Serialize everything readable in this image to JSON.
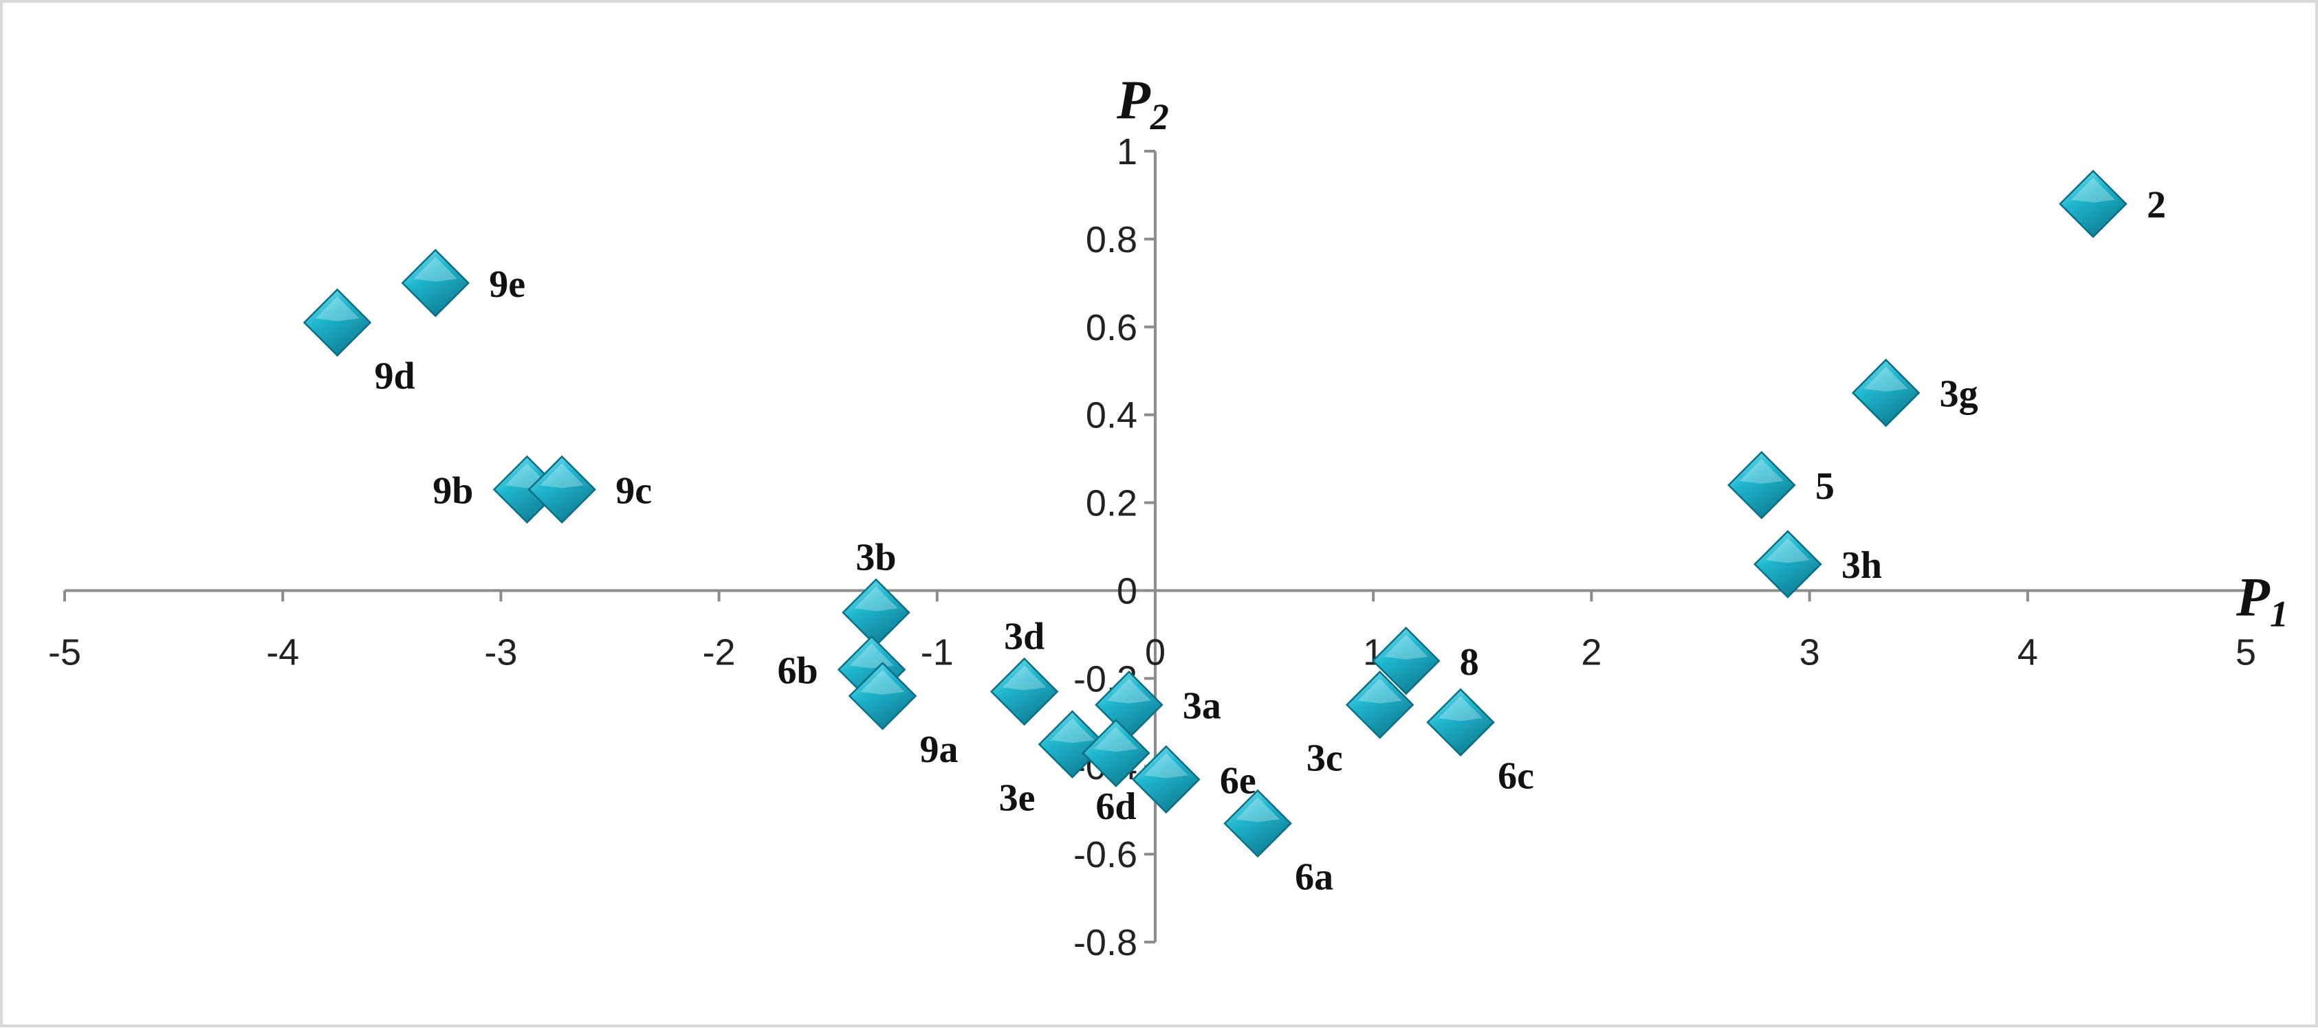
{
  "chart_data": {
    "type": "scatter",
    "title": "",
    "xlabel": {
      "base": "P",
      "sub": "1"
    },
    "ylabel": {
      "base": "P",
      "sub": "2"
    },
    "xlim": [
      -5,
      5
    ],
    "ylim": [
      -0.8,
      1
    ],
    "x_ticks": [
      -5,
      -4,
      -3,
      -2,
      -1,
      0,
      1,
      2,
      3,
      4,
      5
    ],
    "y_ticks": [
      1,
      0.8,
      0.6,
      0.4,
      0.2,
      0,
      -0.2,
      -0.4,
      -0.6,
      -0.8
    ],
    "grid": false,
    "legend": "none",
    "marker": "diamond",
    "marker_color": "#1fb7cf",
    "points": [
      {
        "label": "2",
        "x": 4.3,
        "y": 0.88,
        "label_pos": "right"
      },
      {
        "label": "3g",
        "x": 3.35,
        "y": 0.45,
        "label_pos": "right"
      },
      {
        "label": "5",
        "x": 2.78,
        "y": 0.24,
        "label_pos": "right"
      },
      {
        "label": "3h",
        "x": 2.9,
        "y": 0.06,
        "label_pos": "right"
      },
      {
        "label": "9e",
        "x": -3.3,
        "y": 0.7,
        "label_pos": "right"
      },
      {
        "label": "9d",
        "x": -3.75,
        "y": 0.61,
        "label_pos": "below-right"
      },
      {
        "label": "9b",
        "x": -2.88,
        "y": 0.23,
        "label_pos": "left"
      },
      {
        "label": "9c",
        "x": -2.72,
        "y": 0.23,
        "label_pos": "right"
      },
      {
        "label": "3b",
        "x": -1.28,
        "y": -0.05,
        "label_pos": "above"
      },
      {
        "label": "6b",
        "x": -1.3,
        "y": -0.18,
        "label_pos": "left"
      },
      {
        "label": "9a",
        "x": -1.25,
        "y": -0.24,
        "label_pos": "below-right"
      },
      {
        "label": "3d",
        "x": -0.6,
        "y": -0.23,
        "label_pos": "above"
      },
      {
        "label": "3a",
        "x": -0.12,
        "y": -0.26,
        "label_pos": "right"
      },
      {
        "label": "3e",
        "x": -0.38,
        "y": -0.35,
        "label_pos": "below-left"
      },
      {
        "label": "6d",
        "x": -0.18,
        "y": -0.37,
        "label_pos": "below"
      },
      {
        "label": "6e",
        "x": 0.05,
        "y": -0.43,
        "label_pos": "right"
      },
      {
        "label": "6a",
        "x": 0.47,
        "y": -0.53,
        "label_pos": "below-right"
      },
      {
        "label": "8",
        "x": 1.15,
        "y": -0.16,
        "label_pos": "right"
      },
      {
        "label": "3c",
        "x": 1.03,
        "y": -0.26,
        "label_pos": "below-left"
      },
      {
        "label": "6c",
        "x": 1.4,
        "y": -0.3,
        "label_pos": "below-right"
      }
    ]
  }
}
